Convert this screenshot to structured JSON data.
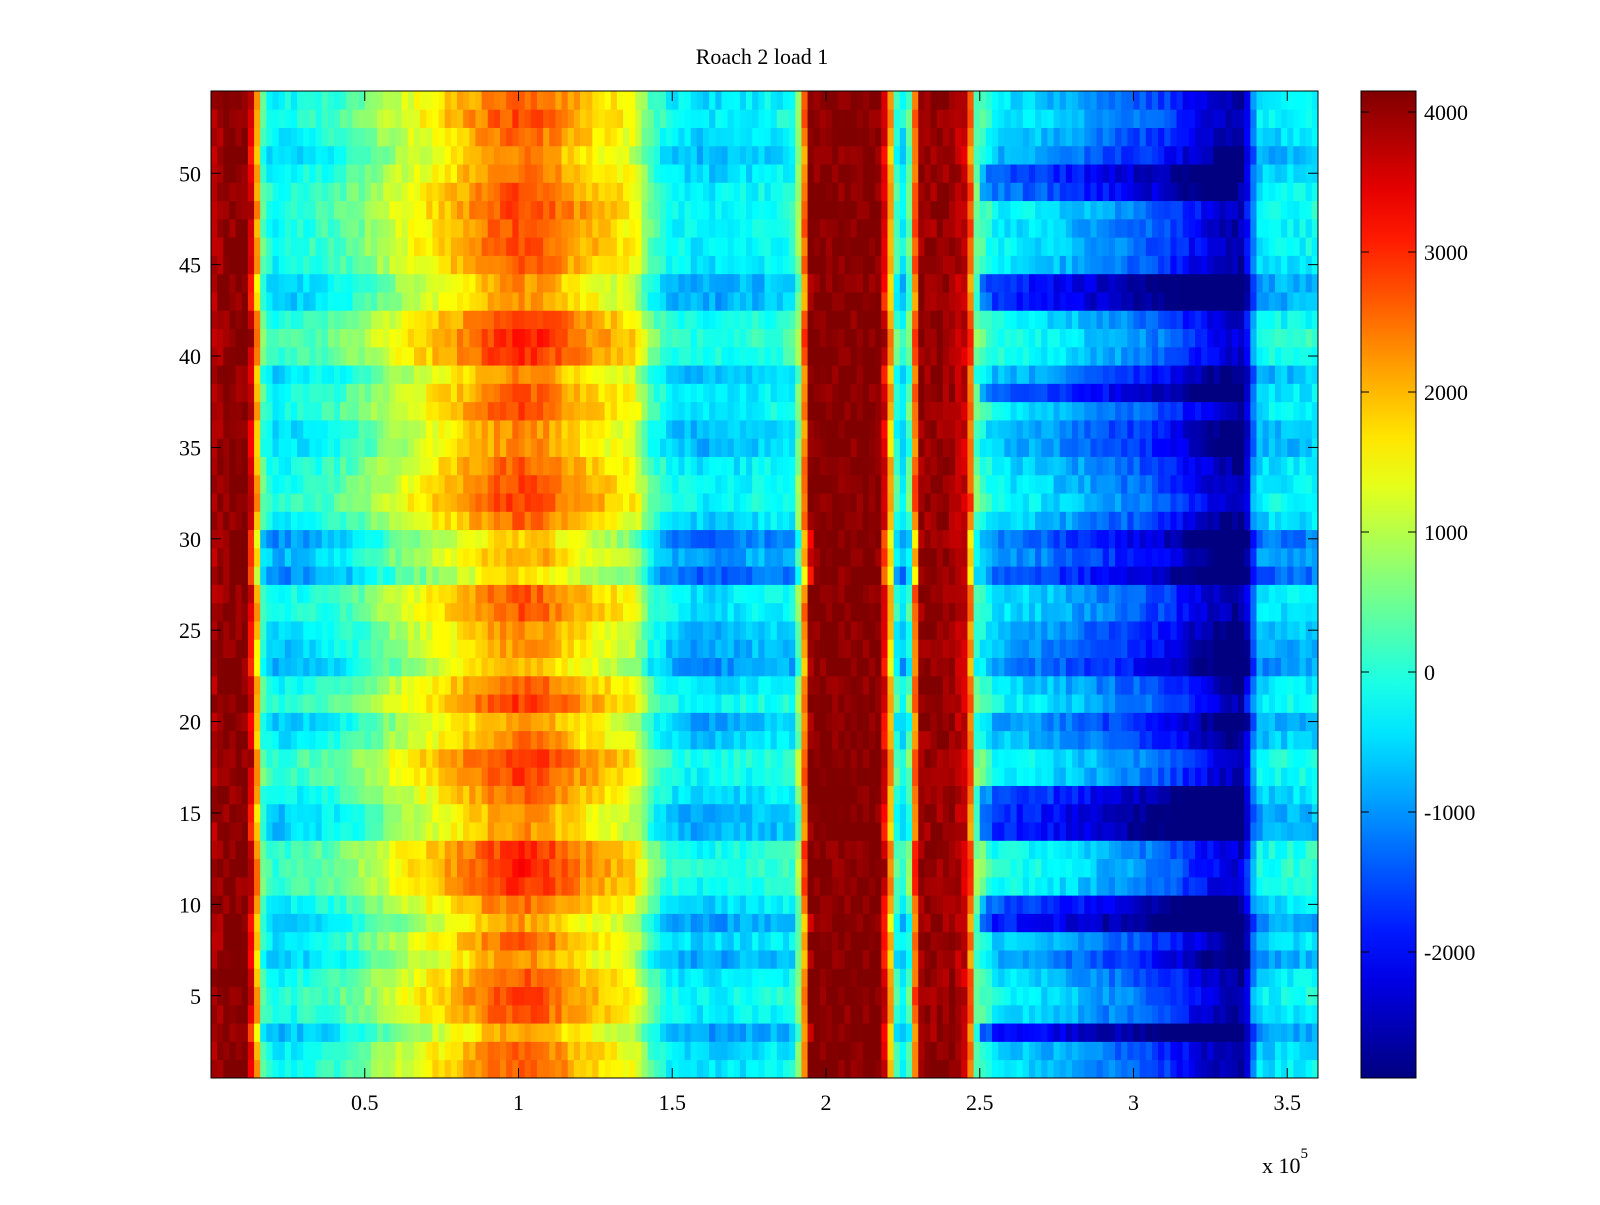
{
  "chart_data": {
    "type": "heatmap",
    "title": "Roach 2 load 1",
    "xlabel": "",
    "ylabel": "",
    "x_multiplier_label": "x 10",
    "x_multiplier_exponent": "5",
    "xlim": [
      0,
      3.6
    ],
    "ylim": [
      0.5,
      54.5
    ],
    "xticks": [
      {
        "value": 0.5,
        "label": "0.5"
      },
      {
        "value": 1,
        "label": "1"
      },
      {
        "value": 1.5,
        "label": "1.5"
      },
      {
        "value": 2,
        "label": "2"
      },
      {
        "value": 2.5,
        "label": "2.5"
      },
      {
        "value": 3,
        "label": "3"
      },
      {
        "value": 3.5,
        "label": "3.5"
      }
    ],
    "yticks": [
      {
        "value": 5,
        "label": "5"
      },
      {
        "value": 10,
        "label": "10"
      },
      {
        "value": 15,
        "label": "15"
      },
      {
        "value": 20,
        "label": "20"
      },
      {
        "value": 25,
        "label": "25"
      },
      {
        "value": 30,
        "label": "30"
      },
      {
        "value": 35,
        "label": "35"
      },
      {
        "value": 40,
        "label": "40"
      },
      {
        "value": 45,
        "label": "45"
      },
      {
        "value": 50,
        "label": "50"
      }
    ],
    "colorbar": {
      "colormap": "jet",
      "range": [
        -2900,
        4150
      ],
      "ticks": [
        {
          "value": 4000,
          "label": "4000"
        },
        {
          "value": 3000,
          "label": "3000"
        },
        {
          "value": 2000,
          "label": "2000"
        },
        {
          "value": 1000,
          "label": "1000"
        },
        {
          "value": 0,
          "label": "0"
        },
        {
          "value": -1000,
          "label": "-1000"
        },
        {
          "value": -2000,
          "label": "-2000"
        }
      ]
    },
    "grid": false,
    "rows": 54,
    "x_profile": [
      [
        0.0,
        3800
      ],
      [
        0.05,
        4100
      ],
      [
        0.12,
        4100
      ],
      [
        0.15,
        2000
      ],
      [
        0.17,
        200
      ],
      [
        0.2,
        -400
      ],
      [
        0.3,
        -200
      ],
      [
        0.4,
        0
      ],
      [
        0.5,
        400
      ],
      [
        0.6,
        1000
      ],
      [
        0.7,
        1400
      ],
      [
        0.8,
        1800
      ],
      [
        0.9,
        2300
      ],
      [
        1.0,
        2600
      ],
      [
        1.1,
        2400
      ],
      [
        1.2,
        1900
      ],
      [
        1.3,
        1600
      ],
      [
        1.38,
        1300
      ],
      [
        1.43,
        200
      ],
      [
        1.5,
        -400
      ],
      [
        1.6,
        -600
      ],
      [
        1.7,
        -500
      ],
      [
        1.8,
        -400
      ],
      [
        1.9,
        -300
      ],
      [
        1.95,
        4150
      ],
      [
        2.05,
        4150
      ],
      [
        2.18,
        4150
      ],
      [
        2.21,
        2000
      ],
      [
        2.23,
        0
      ],
      [
        2.26,
        -600
      ],
      [
        2.28,
        1000
      ],
      [
        2.3,
        4000
      ],
      [
        2.4,
        4000
      ],
      [
        2.46,
        3600
      ],
      [
        2.49,
        300
      ],
      [
        2.55,
        -500
      ],
      [
        2.7,
        -700
      ],
      [
        2.9,
        -1200
      ],
      [
        3.1,
        -1700
      ],
      [
        3.3,
        -2700
      ],
      [
        3.36,
        -2800
      ],
      [
        3.4,
        -600
      ],
      [
        3.5,
        -500
      ],
      [
        3.6,
        -400
      ]
    ],
    "row_offsets": [
      {
        "row": 1,
        "offset": 100
      },
      {
        "row": 2,
        "offset": 0
      },
      {
        "row": 3,
        "offset": -400
      },
      {
        "row": 4,
        "offset": 150
      },
      {
        "row": 5,
        "offset": 300
      },
      {
        "row": 6,
        "offset": 100
      },
      {
        "row": 7,
        "offset": -300
      },
      {
        "row": 8,
        "offset": 0
      },
      {
        "row": 9,
        "offset": -400
      },
      {
        "row": 10,
        "offset": 0
      },
      {
        "row": 11,
        "offset": 400
      },
      {
        "row": 12,
        "offset": 500
      },
      {
        "row": 13,
        "offset": 400
      },
      {
        "row": 14,
        "offset": -300
      },
      {
        "row": 15,
        "offset": -300
      },
      {
        "row": 16,
        "offset": 0
      },
      {
        "row": 17,
        "offset": 300
      },
      {
        "row": 18,
        "offset": 400
      },
      {
        "row": 19,
        "offset": -100
      },
      {
        "row": 20,
        "offset": -300
      },
      {
        "row": 21,
        "offset": 300
      },
      {
        "row": 22,
        "offset": 100
      },
      {
        "row": 23,
        "offset": -500
      },
      {
        "row": 24,
        "offset": -300
      },
      {
        "row": 25,
        "offset": -200
      },
      {
        "row": 26,
        "offset": 100
      },
      {
        "row": 27,
        "offset": 100
      },
      {
        "row": 28,
        "offset": -800
      },
      {
        "row": 29,
        "offset": -400
      },
      {
        "row": 30,
        "offset": -700
      },
      {
        "row": 31,
        "offset": 0
      },
      {
        "row": 32,
        "offset": 300
      },
      {
        "row": 33,
        "offset": 200
      },
      {
        "row": 34,
        "offset": 100
      },
      {
        "row": 35,
        "offset": -200
      },
      {
        "row": 36,
        "offset": -200
      },
      {
        "row": 37,
        "offset": 200
      },
      {
        "row": 38,
        "offset": 100
      },
      {
        "row": 39,
        "offset": -200
      },
      {
        "row": 40,
        "offset": 400
      },
      {
        "row": 41,
        "offset": 500
      },
      {
        "row": 42,
        "offset": 300
      },
      {
        "row": 43,
        "offset": -300
      },
      {
        "row": 44,
        "offset": -300
      },
      {
        "row": 45,
        "offset": 100
      },
      {
        "row": 46,
        "offset": 200
      },
      {
        "row": 47,
        "offset": 200
      },
      {
        "row": 48,
        "offset": 300
      },
      {
        "row": 49,
        "offset": 200
      },
      {
        "row": 50,
        "offset": 0
      },
      {
        "row": 51,
        "offset": -200
      },
      {
        "row": 52,
        "offset": 0
      },
      {
        "row": 53,
        "offset": 200
      },
      {
        "row": 54,
        "offset": 100
      }
    ],
    "dark_right_rows": [
      3,
      9,
      10,
      14,
      15,
      16,
      38,
      43,
      44,
      49,
      50
    ]
  }
}
